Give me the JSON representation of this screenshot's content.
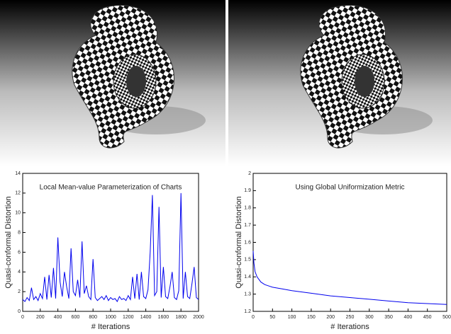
{
  "chart_data": [
    {
      "type": "line",
      "title": "Local Mean-value Parameterization of Charts",
      "x_label": "# Iterations",
      "y_label": "Quasi-conformal Distortion",
      "color": "#0000ee",
      "x": [
        0,
        25,
        50,
        75,
        100,
        125,
        150,
        175,
        200,
        225,
        250,
        275,
        300,
        325,
        350,
        375,
        400,
        425,
        450,
        475,
        500,
        525,
        550,
        575,
        600,
        625,
        650,
        675,
        700,
        725,
        750,
        775,
        800,
        825,
        850,
        875,
        900,
        925,
        950,
        975,
        1000,
        1025,
        1050,
        1075,
        1100,
        1125,
        1150,
        1175,
        1200,
        1225,
        1250,
        1275,
        1300,
        1325,
        1350,
        1375,
        1400,
        1425,
        1450,
        1475,
        1500,
        1525,
        1550,
        1575,
        1600,
        1625,
        1650,
        1675,
        1700,
        1725,
        1750,
        1775,
        1800,
        1825,
        1850,
        1875,
        1900,
        1925,
        1950,
        1975,
        2000
      ],
      "values": [
        1.2,
        1.0,
        1.4,
        1.1,
        2.4,
        1.2,
        1.5,
        1.1,
        1.8,
        1.3,
        3.5,
        1.2,
        3.7,
        1.4,
        4.4,
        1.3,
        7.5,
        3.0,
        1.5,
        4.0,
        2.5,
        1.3,
        6.4,
        2.0,
        1.6,
        3.2,
        1.4,
        7.1,
        1.8,
        2.6,
        1.5,
        1.2,
        5.3,
        1.4,
        1.1,
        1.3,
        1.5,
        1.2,
        1.6,
        1.1,
        1.4,
        1.2,
        1.3,
        1.0,
        1.5,
        1.2,
        1.3,
        1.1,
        1.6,
        1.2,
        3.5,
        1.3,
        3.8,
        1.2,
        4.0,
        1.5,
        1.3,
        2.2,
        6.0,
        11.8,
        1.6,
        2.0,
        10.6,
        1.4,
        4.5,
        1.5,
        1.3,
        2.5,
        4.0,
        1.4,
        1.2,
        2.1,
        12.0,
        1.3,
        4.0,
        1.5,
        1.3,
        2.8,
        4.5,
        1.4,
        1.2
      ],
      "xlim": [
        0,
        2000
      ],
      "xticks": [
        0,
        200,
        400,
        600,
        800,
        1000,
        1200,
        1400,
        1600,
        1800,
        2000
      ],
      "ylim": [
        0,
        14
      ],
      "yticks": [
        0,
        2,
        4,
        6,
        8,
        10,
        12,
        14
      ]
    },
    {
      "type": "line",
      "title": "Using Global Uniformization Metric",
      "x_label": "# Iterations",
      "y_label": "Quasi-conformal Distortion",
      "color": "#0000ee",
      "x": [
        0,
        2,
        5,
        10,
        20,
        30,
        50,
        75,
        100,
        150,
        200,
        250,
        300,
        350,
        400,
        450,
        500
      ],
      "values": [
        1.55,
        1.48,
        1.43,
        1.4,
        1.37,
        1.355,
        1.34,
        1.33,
        1.32,
        1.305,
        1.29,
        1.28,
        1.27,
        1.26,
        1.25,
        1.245,
        1.24
      ],
      "xlim": [
        0,
        500
      ],
      "xticks": [
        0,
        50,
        100,
        150,
        200,
        250,
        300,
        350,
        400,
        450,
        500
      ],
      "ylim": [
        1.2,
        2
      ],
      "yticks": [
        1.2,
        1.3,
        1.4,
        1.5,
        1.6,
        1.7,
        1.8,
        1.9,
        2
      ]
    }
  ]
}
